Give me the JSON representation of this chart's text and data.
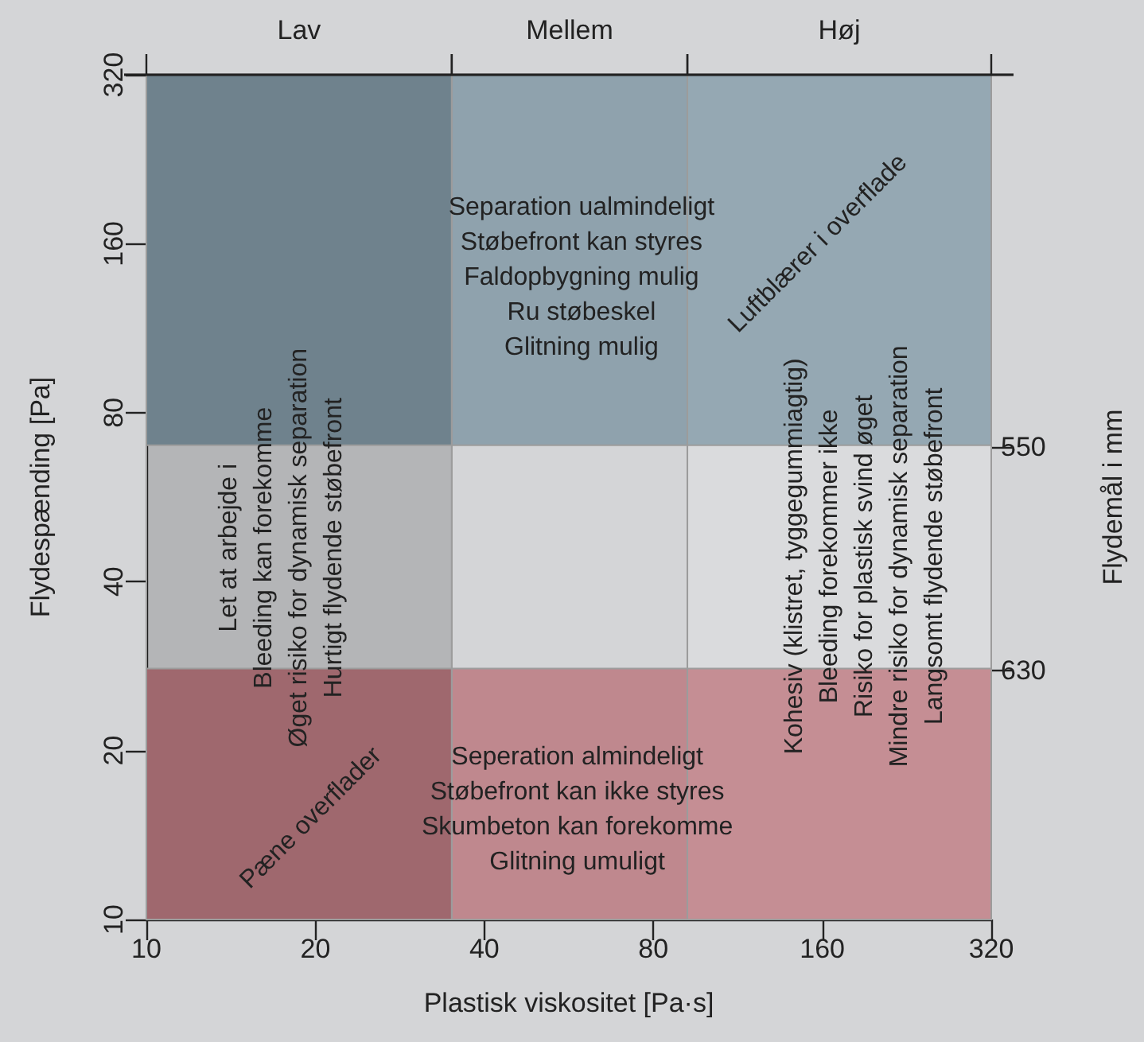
{
  "chart_data": {
    "type": "scatter",
    "xlabel": "Plastisk viskositet [Pa·s]",
    "ylabel": "Flydespænding [Pa]",
    "y2label": "Flydemål i mm",
    "log": "xy",
    "xlim": [
      10,
      320
    ],
    "xticks": [
      10,
      20,
      40,
      80,
      160,
      320
    ],
    "ylim": [
      10,
      320
    ],
    "yticks": [
      10,
      20,
      40,
      80,
      160,
      320
    ],
    "y2lim": [
      719,
      417
    ],
    "y2ticks": [
      550,
      630
    ],
    "bands": [
      {
        "axis": "y",
        "from": 70,
        "to": 320,
        "label": null,
        "color": "#8399a6"
      },
      {
        "axis": "y",
        "from": 10,
        "to": 28,
        "label": null,
        "color": "#bb7b82"
      },
      {
        "axis": "x",
        "from": 10,
        "to": 35,
        "label": "Lav",
        "color": "#000000"
      },
      {
        "axis": "x",
        "from": 35,
        "to": 92,
        "label": "Mellem",
        "color": "#d4d5d7"
      },
      {
        "axis": "x",
        "from": 92,
        "to": 320,
        "label": "Høj",
        "color": "#ffffff"
      }
    ],
    "annotations": [
      "Separation ualmindeligt\nStøbefront kan styres\nFaldopbygning mulig\nRu støbeskel\nGlitning mulig",
      "Luftblærer i overflade",
      "Let at arbejde i\nBleeding kan forekomme\nØget risiko for dynamisk separation\nHurtigt flydende støbefront",
      "Pæne overflader",
      "Seperation almindeligt\nStøbefront kan ikke styres\nSkumbeton kan forekomme\nGlitning umuligt",
      "Kohesiv (klistret, tyggegummiagtig)\nBleeding forekommer ikke\nRisiko for plastisk svind øget\nMindre risiko for dynamisk separation\nLangsomt flydende støbefront"
    ]
  }
}
